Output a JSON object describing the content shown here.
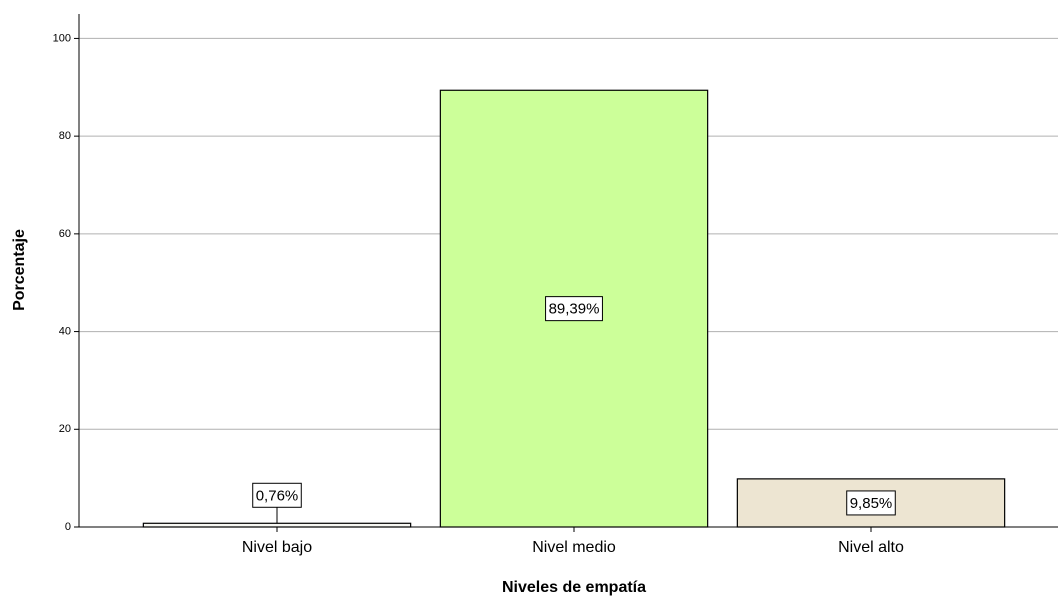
{
  "chart_data": {
    "type": "bar",
    "categories": [
      "Nivel bajo",
      "Nivel medio",
      "Nivel alto"
    ],
    "values": [
      0.76,
      89.39,
      9.85
    ],
    "value_labels": [
      "0,76%",
      "89,39%",
      "9,85%"
    ],
    "colors": [
      "#f7f7f2",
      "#ccff99",
      "#ede5d2"
    ],
    "xlabel": "Niveles de empatía",
    "ylabel": "Porcentaje",
    "ylim": [
      0,
      105
    ],
    "yticks": [
      0,
      20,
      40,
      60,
      80,
      100
    ],
    "grid": true
  }
}
